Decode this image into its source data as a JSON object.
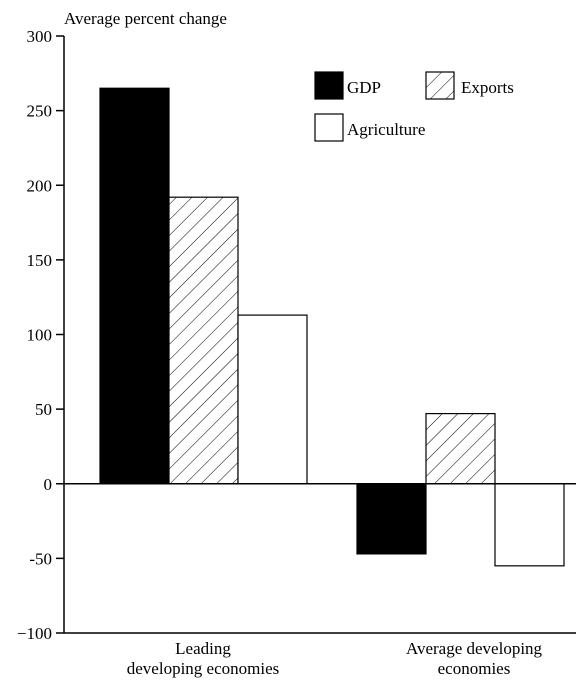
{
  "chart_data": {
    "type": "bar",
    "title": "",
    "ylabel": "Average percent change",
    "xlabel": "",
    "ylim": [
      -100,
      300
    ],
    "yticks": [
      300,
      250,
      200,
      150,
      100,
      50,
      0,
      -50,
      -100
    ],
    "ytick_labels": [
      "300",
      "250",
      "200",
      "150",
      "100",
      "50",
      "0",
      "-50",
      "−100"
    ],
    "categories": [
      [
        "Leading",
        "developing economies"
      ],
      [
        "Average developing",
        "economies"
      ]
    ],
    "series": [
      {
        "name": "GDP",
        "values": [
          265,
          -47
        ],
        "style": "solid",
        "color": "#000000"
      },
      {
        "name": "Exports",
        "values": [
          192,
          47
        ],
        "style": "hatched",
        "color": "#ffffff"
      },
      {
        "name": "Agriculture",
        "values": [
          113,
          -55
        ],
        "style": "empty",
        "color": "#ffffff"
      }
    ],
    "grid": false,
    "legend_position": "top-right"
  }
}
